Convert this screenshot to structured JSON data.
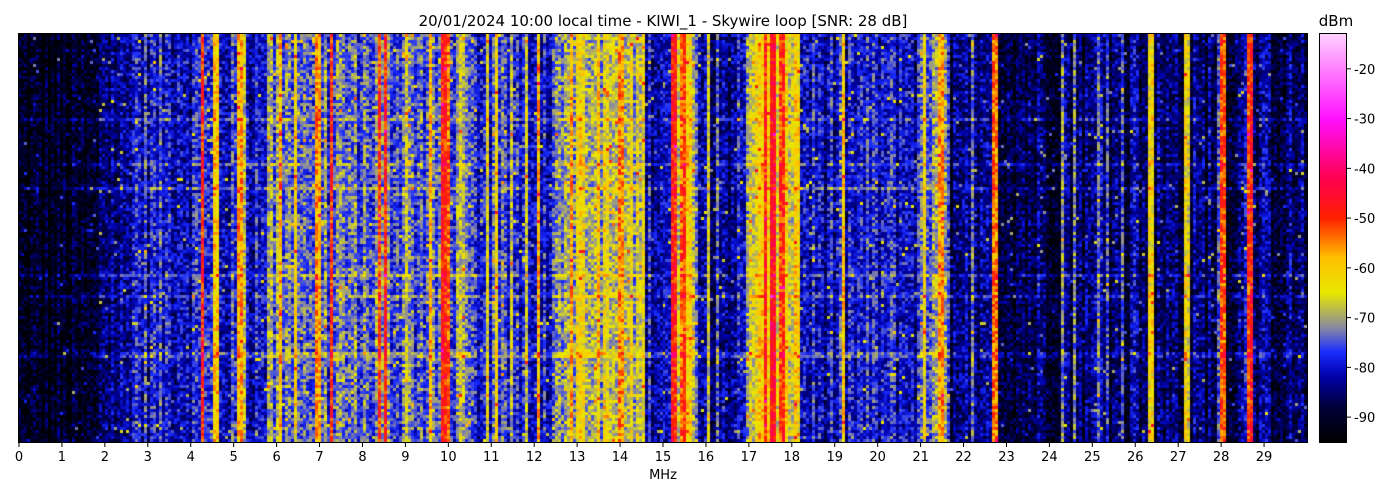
{
  "chart_data": {
    "type": "heatmap",
    "title": "20/01/2024 10:00 local time - KIWI_1 - Skywire loop [SNR: 28 dB]",
    "xlabel": "MHz",
    "ylabel": "",
    "xlim": [
      0,
      30
    ],
    "x_ticks": [
      "0",
      "1",
      "2",
      "3",
      "4",
      "5",
      "6",
      "7",
      "8",
      "9",
      "10",
      "11",
      "12",
      "13",
      "14",
      "15",
      "16",
      "17",
      "18",
      "19",
      "20",
      "21",
      "22",
      "23",
      "24",
      "25",
      "26",
      "27",
      "28",
      "29"
    ],
    "colorbar": {
      "title": "dBm",
      "range": [
        -95,
        -13
      ],
      "ticks": [
        "-20",
        "-30",
        "-40",
        "-50",
        "-60",
        "-70",
        "-80",
        "-90"
      ],
      "tick_values": [
        -20,
        -30,
        -40,
        -50,
        -60,
        -70,
        -80,
        -90
      ],
      "stops": [
        {
          "v": -95,
          "c": "#000000"
        },
        {
          "v": -88,
          "c": "#00003a"
        },
        {
          "v": -82,
          "c": "#0000a8"
        },
        {
          "v": -77,
          "c": "#1a2cff"
        },
        {
          "v": -72,
          "c": "#8a8aa0"
        },
        {
          "v": -65,
          "c": "#e8e800"
        },
        {
          "v": -58,
          "c": "#ffc000"
        },
        {
          "v": -50,
          "c": "#ff2000"
        },
        {
          "v": -42,
          "c": "#ff0050"
        },
        {
          "v": -30,
          "c": "#ff10ff"
        },
        {
          "v": -13,
          "c": "#ffd0ff"
        }
      ]
    },
    "band_levels_dbm": [
      {
        "from": 0.0,
        "to": 1.9,
        "level": -92
      },
      {
        "from": 1.9,
        "to": 2.6,
        "level": -84
      },
      {
        "from": 2.6,
        "to": 5.8,
        "level": -79
      },
      {
        "from": 5.8,
        "to": 10.5,
        "level": -74
      },
      {
        "from": 10.5,
        "to": 12.5,
        "level": -78
      },
      {
        "from": 12.5,
        "to": 14.6,
        "level": -68
      },
      {
        "from": 14.6,
        "to": 15.2,
        "level": -80
      },
      {
        "from": 15.2,
        "to": 15.8,
        "level": -64
      },
      {
        "from": 15.8,
        "to": 17.0,
        "level": -82
      },
      {
        "from": 17.0,
        "to": 18.2,
        "level": -64
      },
      {
        "from": 18.2,
        "to": 21.0,
        "level": -80
      },
      {
        "from": 21.0,
        "to": 21.7,
        "level": -74
      },
      {
        "from": 21.7,
        "to": 30.0,
        "level": -86
      }
    ],
    "strong_lines_mhz": [
      {
        "f": 4.3,
        "level": -50
      },
      {
        "f": 4.6,
        "level": -60
      },
      {
        "f": 5.15,
        "level": -58
      },
      {
        "f": 6.1,
        "level": -60
      },
      {
        "f": 7.0,
        "level": -56
      },
      {
        "f": 7.3,
        "level": -52
      },
      {
        "f": 8.4,
        "level": -52
      },
      {
        "f": 8.55,
        "level": -50
      },
      {
        "f": 9.9,
        "level": -50
      },
      {
        "f": 10.0,
        "level": -54
      },
      {
        "f": 12.1,
        "level": -60
      },
      {
        "f": 13.5,
        "level": -60
      },
      {
        "f": 14.0,
        "level": -56
      },
      {
        "f": 15.3,
        "level": -50
      },
      {
        "f": 15.5,
        "level": -52
      },
      {
        "f": 17.4,
        "level": -50
      },
      {
        "f": 17.6,
        "level": -48
      },
      {
        "f": 17.8,
        "level": -52
      },
      {
        "f": 21.1,
        "level": -62
      },
      {
        "f": 21.5,
        "level": -58
      },
      {
        "f": 22.75,
        "level": -54
      },
      {
        "f": 26.35,
        "level": -62
      },
      {
        "f": 27.2,
        "level": -64
      },
      {
        "f": 28.05,
        "level": -52
      },
      {
        "f": 28.65,
        "level": -50
      }
    ]
  }
}
